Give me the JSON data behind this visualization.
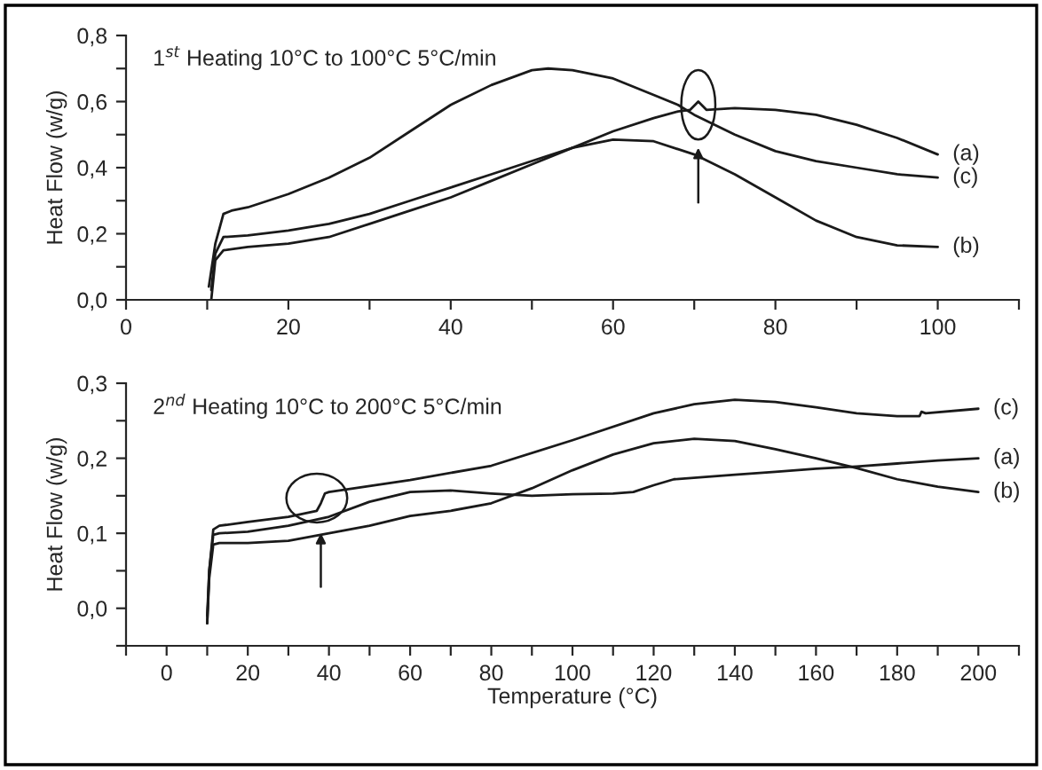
{
  "chart_data": [
    {
      "type": "line",
      "title": "1$^{st}$ Heating 10°C to 100°C 5°C/min",
      "ylabel": "Heat Flow (w/g)",
      "xlim": [
        0,
        110
      ],
      "xticks": [
        0,
        {
          "value": 10,
          "label": null
        },
        20,
        {
          "value": 30,
          "label": null
        },
        40,
        {
          "value": 50,
          "label": null
        },
        60,
        {
          "value": 70,
          "label": null
        },
        80,
        {
          "value": 90,
          "label": null
        },
        100,
        {
          "value": 110,
          "label": null
        }
      ],
      "ylim": [
        0,
        0.8
      ],
      "yticks": [
        {
          "value": 0,
          "label": "0,0"
        },
        {
          "value": 0.1,
          "label": null
        },
        {
          "value": 0.2,
          "label": "0,2"
        },
        {
          "value": 0.3,
          "label": null
        },
        {
          "value": 0.4,
          "label": "0,4"
        },
        {
          "value": 0.5,
          "label": null
        },
        {
          "value": 0.6,
          "label": "0,6"
        },
        {
          "value": 0.7,
          "label": null
        },
        {
          "value": 0.8,
          "label": "0,8"
        }
      ],
      "grid": false,
      "legend": false,
      "marker": "none",
      "line_style": "solid",
      "series": [
        {
          "name": "(a)",
          "color": "#1a1a1a",
          "x": [
            10.5,
            11,
            12,
            15,
            20,
            25,
            30,
            35,
            40,
            45,
            50,
            55,
            60,
            65,
            68,
            69.5,
            70.5,
            71.5,
            75,
            80,
            85,
            90,
            95,
            100
          ],
          "values": [
            0.0,
            0.12,
            0.15,
            0.16,
            0.17,
            0.19,
            0.23,
            0.27,
            0.31,
            0.36,
            0.41,
            0.46,
            0.51,
            0.55,
            0.57,
            0.575,
            0.6,
            0.575,
            0.58,
            0.575,
            0.56,
            0.53,
            0.49,
            0.44
          ]
        },
        {
          "name": "(b)",
          "color": "#1a1a1a",
          "x": [
            10.5,
            11,
            12,
            15,
            20,
            25,
            30,
            35,
            40,
            45,
            50,
            55,
            60,
            65,
            70,
            75,
            80,
            85,
            90,
            95,
            100
          ],
          "values": [
            0.03,
            0.14,
            0.19,
            0.195,
            0.21,
            0.23,
            0.26,
            0.3,
            0.34,
            0.38,
            0.42,
            0.46,
            0.485,
            0.48,
            0.44,
            0.38,
            0.31,
            0.24,
            0.19,
            0.165,
            0.16
          ]
        },
        {
          "name": "(c)",
          "color": "#1a1a1a",
          "x": [
            10.2,
            11,
            12,
            13,
            15,
            20,
            25,
            30,
            35,
            40,
            45,
            50,
            52,
            55,
            60,
            65,
            68,
            70,
            75,
            80,
            85,
            90,
            95,
            100
          ],
          "values": [
            0.04,
            0.17,
            0.26,
            0.27,
            0.28,
            0.32,
            0.37,
            0.43,
            0.51,
            0.59,
            0.65,
            0.695,
            0.7,
            0.695,
            0.67,
            0.62,
            0.59,
            0.56,
            0.5,
            0.45,
            0.42,
            0.4,
            0.38,
            0.37
          ]
        }
      ]
    },
    {
      "type": "line",
      "title": "2$^{nd}$ Heating 10°C to 200°C 5°C/min",
      "ylabel": "Heat Flow (w/g)",
      "xlabel": "Temperature (°C)",
      "xlim": [
        -10,
        210
      ],
      "xticks": [
        {
          "value": -10,
          "label": null
        },
        0,
        {
          "value": 10,
          "label": null
        },
        20,
        {
          "value": 30,
          "label": null
        },
        40,
        {
          "value": 50,
          "label": null
        },
        60,
        {
          "value": 70,
          "label": null
        },
        80,
        {
          "value": 90,
          "label": null
        },
        100,
        {
          "value": 110,
          "label": null
        },
        120,
        {
          "value": 130,
          "label": null
        },
        140,
        {
          "value": 150,
          "label": null
        },
        160,
        {
          "value": 170,
          "label": null
        },
        180,
        {
          "value": 190,
          "label": null
        },
        200,
        {
          "value": 210,
          "label": null
        }
      ],
      "ylim": [
        -0.05,
        0.3
      ],
      "yticks": [
        {
          "value": -0.05,
          "label": null
        },
        {
          "value": 0,
          "label": "0,0"
        },
        {
          "value": 0.05,
          "label": null
        },
        {
          "value": 0.1,
          "label": "0,1"
        },
        {
          "value": 0.15,
          "label": null
        },
        {
          "value": 0.2,
          "label": "0,2"
        },
        {
          "value": 0.25,
          "label": null
        },
        {
          "value": 0.3,
          "label": "0,3"
        }
      ],
      "grid": false,
      "legend": false,
      "marker": "none",
      "line_style": "solid",
      "series": [
        {
          "name": "(c)",
          "color": "#1a1a1a",
          "x": [
            10,
            10.5,
            11.5,
            13,
            20,
            30,
            37,
            38,
            39,
            40,
            50,
            60,
            80,
            100,
            120,
            130,
            140,
            150,
            160,
            170,
            180,
            185.5,
            186,
            187,
            200
          ],
          "values": [
            -0.02,
            0.05,
            0.105,
            0.11,
            0.115,
            0.122,
            0.13,
            0.14,
            0.153,
            0.155,
            0.163,
            0.171,
            0.19,
            0.224,
            0.26,
            0.272,
            0.278,
            0.275,
            0.268,
            0.26,
            0.256,
            0.256,
            0.262,
            0.26,
            0.266
          ]
        },
        {
          "name": "(b)",
          "color": "#1a1a1a",
          "x": [
            10,
            10.5,
            11.5,
            13,
            20,
            30,
            40,
            50,
            60,
            70,
            80,
            90,
            100,
            110,
            120,
            130,
            140,
            150,
            160,
            170,
            180,
            190,
            200
          ],
          "values": [
            -0.02,
            0.04,
            0.085,
            0.087,
            0.087,
            0.09,
            0.1,
            0.11,
            0.123,
            0.13,
            0.14,
            0.16,
            0.184,
            0.205,
            0.22,
            0.226,
            0.223,
            0.212,
            0.2,
            0.187,
            0.172,
            0.162,
            0.155
          ]
        },
        {
          "name": "(a)",
          "color": "#1a1a1a",
          "x": [
            10,
            10.5,
            11.5,
            13,
            20,
            30,
            40,
            50,
            60,
            70,
            80,
            90,
            100,
            110,
            115,
            120,
            125,
            140,
            150,
            160,
            170,
            180,
            190,
            200
          ],
          "values": [
            -0.01,
            0.05,
            0.098,
            0.1,
            0.102,
            0.11,
            0.122,
            0.142,
            0.155,
            0.157,
            0.153,
            0.15,
            0.152,
            0.153,
            0.155,
            0.164,
            0.172,
            0.178,
            0.182,
            0.186,
            0.189,
            0.193,
            0.197,
            0.2
          ]
        }
      ]
    }
  ]
}
